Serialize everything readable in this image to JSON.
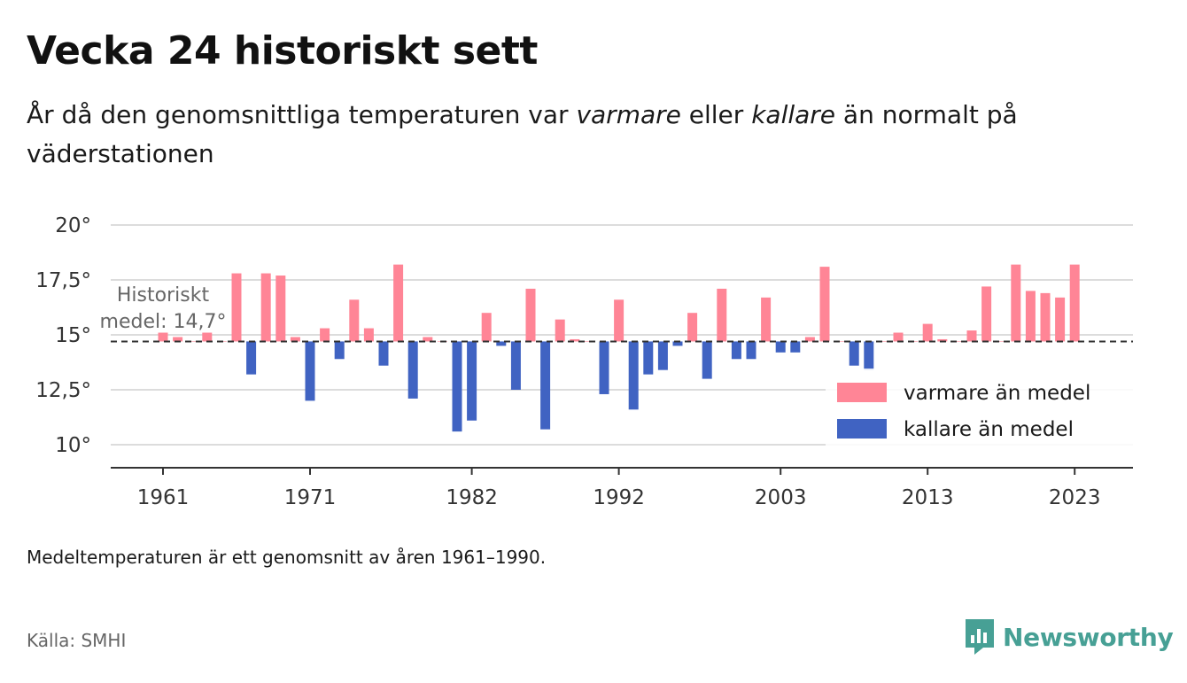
{
  "header": {
    "title": "Vecka 24 historiskt sett",
    "subtitle_part1": "År då den genomsnittliga temperaturen var ",
    "subtitle_em1": "varmare",
    "subtitle_part2": " eller ",
    "subtitle_em2": "kallare",
    "subtitle_part3": " än normalt på väderstationen"
  },
  "footer": {
    "note": "Medeltemperaturen är ett genomsnitt av åren 1961–1990.",
    "source": "Källa: SMHI",
    "logo_text": "Newsworthy"
  },
  "colors": {
    "warm": "#ff8596",
    "cold": "#4063c2",
    "logo": "#47a095"
  },
  "chart_data": {
    "type": "bar",
    "baseline": 14.7,
    "baseline_label_line1": "Historiskt",
    "baseline_label_line2": "medel: 14,7°",
    "ylim": [
      9,
      20.5
    ],
    "y_ticks": [
      10,
      12.5,
      15,
      17.5,
      20
    ],
    "y_tick_labels": [
      "10°",
      "12,5°",
      "15°",
      "17,5°",
      "20°"
    ],
    "x_ticks": [
      1961,
      1971,
      1982,
      1992,
      2003,
      2013,
      2023
    ],
    "x_tick_labels": [
      "1961",
      "1971",
      "1982",
      "1992",
      "2003",
      "2013",
      "2023"
    ],
    "legend": {
      "position": "bottom-right",
      "warm_label": "varmare än medel",
      "cold_label": "kallare än medel"
    },
    "years": [
      1961,
      1962,
      1963,
      1964,
      1965,
      1966,
      1967,
      1968,
      1969,
      1970,
      1971,
      1972,
      1973,
      1974,
      1975,
      1976,
      1977,
      1978,
      1979,
      1980,
      1981,
      1982,
      1983,
      1984,
      1985,
      1986,
      1987,
      1988,
      1989,
      1990,
      1991,
      1992,
      1993,
      1994,
      1995,
      1996,
      1997,
      1998,
      1999,
      2000,
      2001,
      2002,
      2003,
      2004,
      2005,
      2006,
      2007,
      2008,
      2009,
      2010,
      2011,
      2012,
      2013,
      2014,
      2015,
      2016,
      2017,
      2018,
      2019,
      2020,
      2021,
      2022,
      2023
    ],
    "values": [
      15.1,
      14.9,
      14.7,
      15.1,
      14.7,
      17.8,
      13.2,
      17.8,
      17.7,
      14.9,
      12.0,
      15.3,
      13.9,
      16.6,
      15.3,
      13.6,
      18.2,
      12.1,
      14.9,
      14.7,
      10.6,
      11.1,
      16.0,
      14.5,
      12.5,
      17.1,
      10.7,
      15.7,
      14.8,
      14.7,
      12.3,
      16.6,
      11.6,
      13.2,
      13.4,
      14.5,
      16.0,
      13.0,
      17.1,
      13.9,
      13.9,
      16.7,
      14.2,
      14.2,
      14.9,
      18.1,
      14.7,
      13.6,
      13.4,
      14.7,
      15.1,
      14.7,
      15.5,
      14.8,
      14.7,
      15.2,
      17.2,
      14.7,
      18.2,
      17.0,
      16.9,
      16.7,
      18.2
    ]
  }
}
